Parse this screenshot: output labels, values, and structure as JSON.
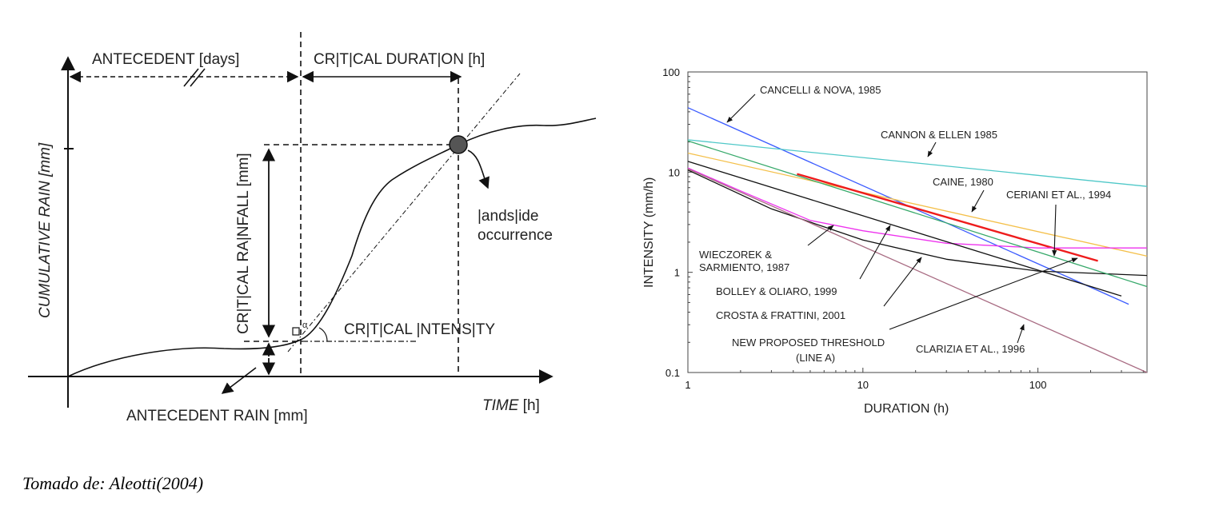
{
  "left_diagram": {
    "labels": {
      "antecedent_days": "ANTECEDENT [days]",
      "critical_duration": "CR|T|CAL DURAT|ON [h]",
      "cumulative_rain": "CUMULATIVE RAIN [mm]",
      "critical_rainfall": "CR|T|CAL RA|NFALL [mm]",
      "landslide_1": "|ands|ide",
      "landslide_2": "occurrence",
      "critical_intensity": "CR|T|CAL |NTENS|TY",
      "alpha": "α",
      "antecedent_rain": "ANTECEDENT RAIN [mm]",
      "time": "TIME",
      "time_unit": "[h]"
    }
  },
  "chart_data": {
    "type": "line",
    "xlabel": "DURATION (h)",
    "ylabel": "INTENSITY (mm/h)",
    "xscale": "log",
    "yscale": "log",
    "xlim": [
      1,
      420
    ],
    "ylim": [
      0.1,
      100
    ],
    "xticks": [
      "1",
      "10",
      "100"
    ],
    "yticks": [
      "0.1",
      "1",
      "10",
      "100"
    ],
    "series": [
      {
        "name": "CANCELLI & NOVA, 1985",
        "color": "#3b5bff",
        "points": [
          [
            1,
            44
          ],
          [
            330,
            0.48
          ]
        ]
      },
      {
        "name": "CANNON & ELLEN 1985",
        "color": "#4fc8c8",
        "points": [
          [
            1,
            21
          ],
          [
            420,
            7.2
          ]
        ]
      },
      {
        "name": "CAINE, 1980",
        "color": "#f4c04a",
        "points": [
          [
            1,
            15.5
          ],
          [
            420,
            1.45
          ]
        ]
      },
      {
        "name": "CERIANI ET AL., 1994",
        "color": "#ee1c1c",
        "width": 2.4,
        "points": [
          [
            4.2,
            9.6
          ],
          [
            220,
            1.3
          ]
        ]
      },
      {
        "name": "WIECZOREK & SARMIENTO, 1987",
        "color": "#ee33ee",
        "points": [
          [
            1,
            11
          ],
          [
            2,
            6.5
          ],
          [
            5,
            3.3
          ],
          [
            10,
            2.6
          ],
          [
            30,
            1.95
          ],
          [
            100,
            1.75
          ],
          [
            420,
            1.75
          ]
        ]
      },
      {
        "name": "BOLLEY & OLIARO, 1999",
        "color": "#111111",
        "points": [
          [
            1,
            12.8
          ],
          [
            300,
            0.58
          ]
        ]
      },
      {
        "name": "CROSTA & FRATTINI, 2001",
        "color": "#111111",
        "points": [
          [
            1,
            10.5
          ],
          [
            3,
            4.3
          ],
          [
            10,
            2.1
          ],
          [
            30,
            1.35
          ],
          [
            100,
            1.03
          ],
          [
            420,
            0.93
          ]
        ]
      },
      {
        "name": "NEW PROPOSED THRESHOLD (LINE A)",
        "color": "#37a96a",
        "points": [
          [
            1,
            20.5
          ],
          [
            420,
            0.72
          ]
        ]
      },
      {
        "name": "CLARIZIA ET AL., 1996",
        "color": "#a86b82",
        "points": [
          [
            1,
            10.8
          ],
          [
            420,
            0.1
          ]
        ]
      }
    ],
    "annotations": [
      {
        "text": "CANCELLI & NOVA, 1985"
      },
      {
        "text": "CANNON & ELLEN 1985"
      },
      {
        "text": "CAINE, 1980"
      },
      {
        "text": "CERIANI ET AL., 1994"
      },
      {
        "text": "WIECZOREK &"
      },
      {
        "text": "SARMIENTO, 1987"
      },
      {
        "text": "BOLLEY & OLIARO, 1999"
      },
      {
        "text": "CROSTA & FRATTINI, 2001"
      },
      {
        "text": "NEW PROPOSED THRESHOLD"
      },
      {
        "text": "(LINE A)"
      },
      {
        "text": "CLARIZIA ET AL., 1996"
      }
    ]
  },
  "caption": "Tomado de: Aleotti(2004)"
}
